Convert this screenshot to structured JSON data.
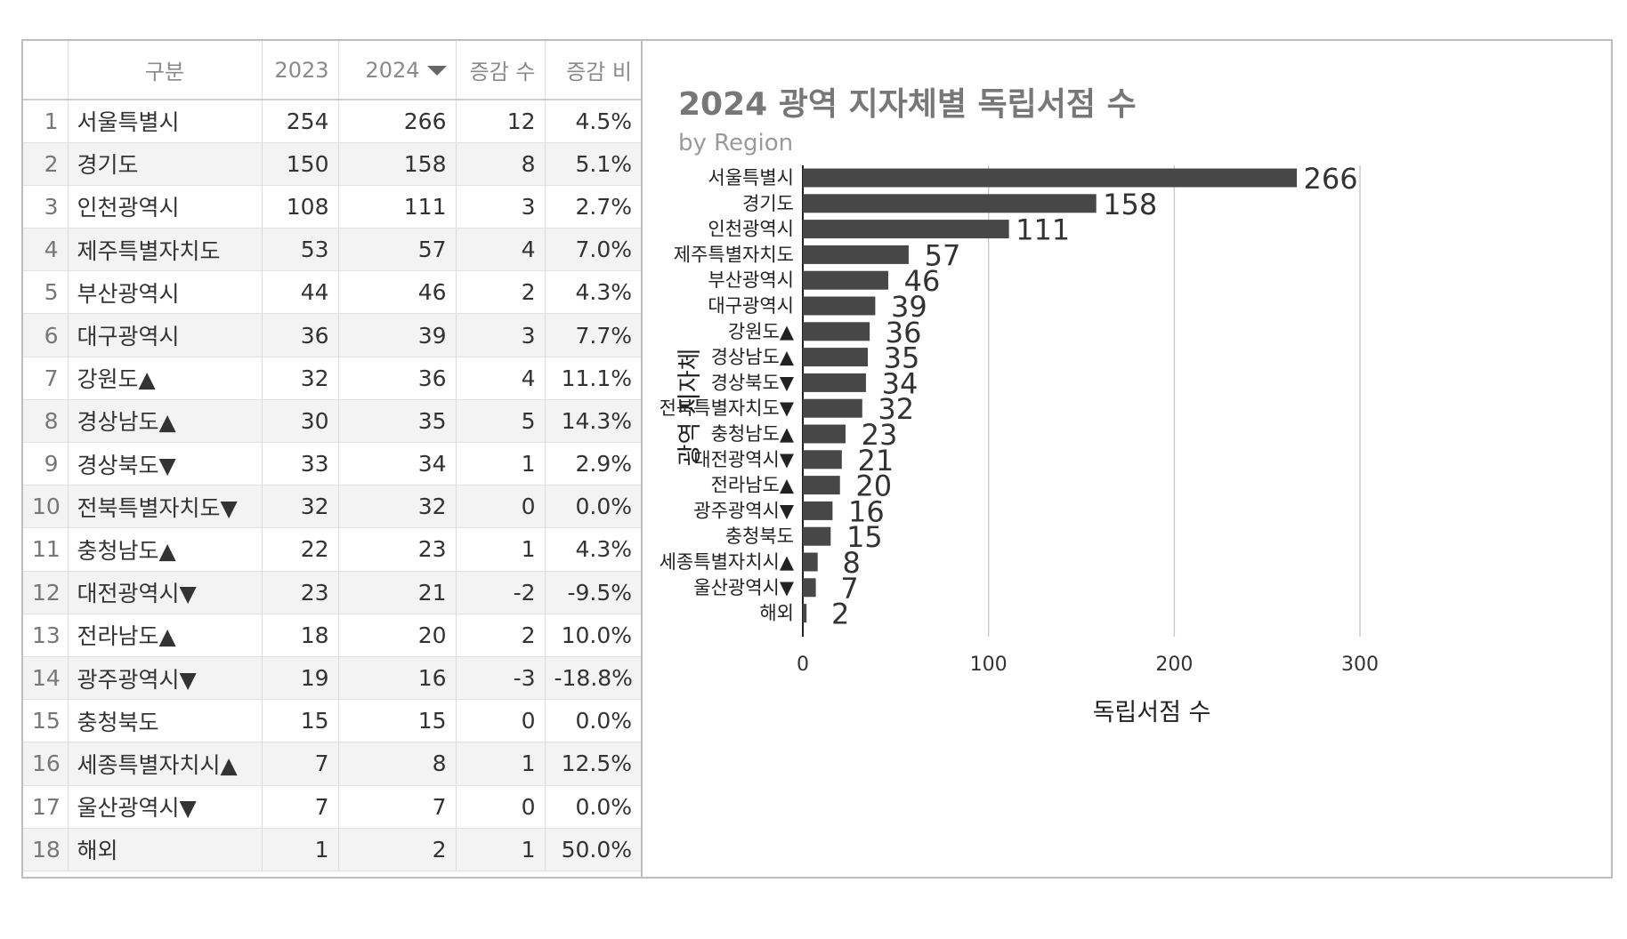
{
  "table": {
    "headers": {
      "index": "",
      "name": "구분",
      "y2023": "2023",
      "y2024": "2024",
      "diff": "증감 수",
      "ratio": "증감 비"
    },
    "rows": [
      {
        "idx": "1",
        "name": "서울특별시",
        "y2023": "254",
        "y2024": "266",
        "diff": "12",
        "ratio": "4.5%"
      },
      {
        "idx": "2",
        "name": "경기도",
        "y2023": "150",
        "y2024": "158",
        "diff": "8",
        "ratio": "5.1%"
      },
      {
        "idx": "3",
        "name": "인천광역시",
        "y2023": "108",
        "y2024": "111",
        "diff": "3",
        "ratio": "2.7%"
      },
      {
        "idx": "4",
        "name": "제주특별자치도",
        "y2023": "53",
        "y2024": "57",
        "diff": "4",
        "ratio": "7.0%"
      },
      {
        "idx": "5",
        "name": "부산광역시",
        "y2023": "44",
        "y2024": "46",
        "diff": "2",
        "ratio": "4.3%"
      },
      {
        "idx": "6",
        "name": "대구광역시",
        "y2023": "36",
        "y2024": "39",
        "diff": "3",
        "ratio": "7.7%"
      },
      {
        "idx": "7",
        "name": "강원도▲",
        "y2023": "32",
        "y2024": "36",
        "diff": "4",
        "ratio": "11.1%"
      },
      {
        "idx": "8",
        "name": "경상남도▲",
        "y2023": "30",
        "y2024": "35",
        "diff": "5",
        "ratio": "14.3%"
      },
      {
        "idx": "9",
        "name": "경상북도▼",
        "y2023": "33",
        "y2024": "34",
        "diff": "1",
        "ratio": "2.9%"
      },
      {
        "idx": "10",
        "name": "전북특별자치도▼",
        "y2023": "32",
        "y2024": "32",
        "diff": "0",
        "ratio": "0.0%"
      },
      {
        "idx": "11",
        "name": "충청남도▲",
        "y2023": "22",
        "y2024": "23",
        "diff": "1",
        "ratio": "4.3%"
      },
      {
        "idx": "12",
        "name": "대전광역시▼",
        "y2023": "23",
        "y2024": "21",
        "diff": "-2",
        "ratio": "-9.5%"
      },
      {
        "idx": "13",
        "name": "전라남도▲",
        "y2023": "18",
        "y2024": "20",
        "diff": "2",
        "ratio": "10.0%"
      },
      {
        "idx": "14",
        "name": "광주광역시▼",
        "y2023": "19",
        "y2024": "16",
        "diff": "-3",
        "ratio": "-18.8%"
      },
      {
        "idx": "15",
        "name": "충청북도",
        "y2023": "15",
        "y2024": "15",
        "diff": "0",
        "ratio": "0.0%"
      },
      {
        "idx": "16",
        "name": "세종특별자치시▲",
        "y2023": "7",
        "y2024": "8",
        "diff": "1",
        "ratio": "12.5%"
      },
      {
        "idx": "17",
        "name": "울산광역시▼",
        "y2023": "7",
        "y2024": "7",
        "diff": "0",
        "ratio": "0.0%"
      },
      {
        "idx": "18",
        "name": "해외",
        "y2023": "1",
        "y2024": "2",
        "diff": "1",
        "ratio": "50.0%"
      }
    ]
  },
  "chart_data": {
    "type": "bar",
    "orientation": "horizontal",
    "title": "2024 광역 지자체별 독립서점 수",
    "subtitle": "by Region",
    "xlabel": "독립서점 수",
    "ylabel": "광역 지자체",
    "categories": [
      "서울특별시",
      "경기도",
      "인천광역시",
      "제주특별자치도",
      "부산광역시",
      "대구광역시",
      "강원도▲",
      "경상남도▲",
      "경상북도▼",
      "전북특별자치도▼",
      "충청남도▲",
      "대전광역시▼",
      "전라남도▲",
      "광주광역시▼",
      "충청북도",
      "세종특별자치시▲",
      "울산광역시▼",
      "해외"
    ],
    "values": [
      266,
      158,
      111,
      57,
      46,
      39,
      36,
      35,
      34,
      32,
      23,
      21,
      20,
      16,
      15,
      8,
      7,
      2
    ],
    "xlim": [
      0,
      300
    ],
    "xticks": [
      "0",
      "100",
      "200",
      "300"
    ],
    "grid": true,
    "legend": "none",
    "bar_color": "#474747",
    "grid_color": "#cccccc"
  }
}
